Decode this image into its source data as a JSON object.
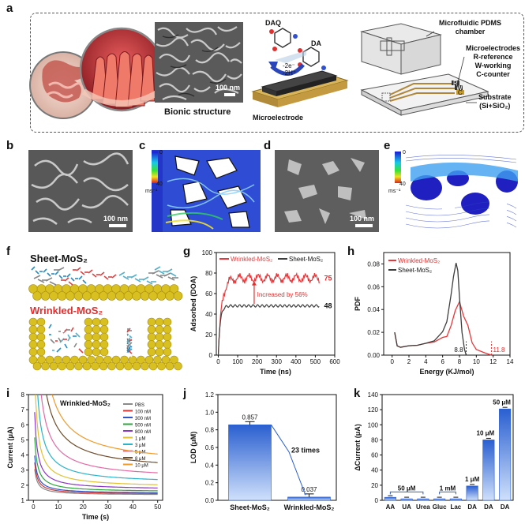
{
  "panel_letters": {
    "a": "a",
    "b": "b",
    "c": "c",
    "d": "d",
    "e": "e",
    "f": "f",
    "g": "g",
    "h": "h",
    "i": "i",
    "j": "j",
    "k": "k"
  },
  "panel_a": {
    "bionic_label": "Bionic structure",
    "scale_100nm": "100 nm",
    "daq": "DAQ",
    "da": "DA",
    "reaction": "-2e⁻\n-2H⁺",
    "reaction_e": "-2e⁻",
    "reaction_h": "-2H⁺",
    "microelectrode": "Microelectrode",
    "chamber_line1": "Microfluidic PDMS",
    "chamber_line2": "chamber",
    "electrodes_line1": "Microelectrodes",
    "electrodes_line2": "R-reference",
    "electrodes_line3": "W-working",
    "electrodes_line4": "C-counter",
    "substrate_line1": "Substrate",
    "substrate_line2": "(Si+SiO₂)",
    "pin_r": "R",
    "pin_w": "W",
    "pin_c": "C"
  },
  "panel_bcde": {
    "scale_b": "100 nm",
    "scale_d": "100 nm",
    "cbar_c_top": "0",
    "cbar_c_bot": "40",
    "cbar_c_unit": "ms⁻¹",
    "cbar_e_top": "0",
    "cbar_e_bot": "40",
    "cbar_e_unit": "ms⁻¹"
  },
  "panel_f": {
    "sheet": "Sheet-MoS₂",
    "wrinkled": "Wrinkled-MoS₂"
  },
  "chart_data": [
    {
      "panel": "g",
      "type": "line",
      "xlabel": "Time (ns)",
      "ylabel": "Adsorbed (DOA)",
      "xlim": [
        -10,
        600
      ],
      "ylim": [
        0,
        100
      ],
      "xticks": [
        0,
        100,
        200,
        300,
        400,
        500,
        600
      ],
      "yticks": [
        0,
        20,
        40,
        60,
        80,
        100
      ],
      "series": [
        {
          "name": "Wrinkled-MoS₂",
          "color": "#e8373a",
          "plateau": 75,
          "end": 520
        },
        {
          "name": "Sheet-MoS₂",
          "color": "#3d3d3d",
          "plateau": 48,
          "end": 520
        }
      ],
      "annotations": {
        "wrinkled_value": "75",
        "sheet_value": "48",
        "increase": "Increased by 56%"
      }
    },
    {
      "panel": "h",
      "type": "line",
      "xlabel": "Energy (KJ/mol)",
      "ylabel": "PDF",
      "xlim": [
        -1,
        14
      ],
      "ylim": [
        0,
        0.09
      ],
      "xticks": [
        0,
        2,
        4,
        6,
        8,
        10,
        12,
        14
      ],
      "yticks": [
        0.0,
        0.02,
        0.04,
        0.06,
        0.08
      ],
      "ytick_labels": [
        "0.00",
        "0.02",
        "0.04",
        "0.06",
        "0.08"
      ],
      "series": [
        {
          "name": "Wrinkled-MoS₂",
          "color": "#e8373a",
          "x": [
            0.3,
            0.6,
            1,
            2,
            3,
            4,
            5,
            6,
            6.5,
            7,
            7.5,
            8,
            8.5,
            9,
            9.5,
            10,
            11,
            11.8
          ],
          "y": [
            0.02,
            0.008,
            0.007,
            0.008,
            0.009,
            0.01,
            0.012,
            0.015,
            0.017,
            0.025,
            0.04,
            0.046,
            0.035,
            0.025,
            0.012,
            0.005,
            0.002,
            0.0
          ]
        },
        {
          "name": "Sheet-MoS₂",
          "color": "#3d3d3d",
          "x": [
            0.3,
            0.6,
            1,
            2,
            3,
            4,
            5,
            6,
            6.5,
            7,
            7.3,
            7.6,
            7.8,
            8,
            8.3,
            8.6,
            8.8
          ],
          "y": [
            0.02,
            0.008,
            0.007,
            0.008,
            0.009,
            0.01,
            0.013,
            0.02,
            0.03,
            0.052,
            0.07,
            0.08,
            0.075,
            0.05,
            0.02,
            0.005,
            0.0
          ]
        }
      ],
      "annotations": {
        "sheet_end": "8.8",
        "wrinkled_end": "11.8"
      }
    },
    {
      "panel": "i",
      "type": "line",
      "title": "Wrinkled-MoS₂",
      "xlabel": "Time (s)",
      "ylabel": "Current (μA)",
      "xlim": [
        -2,
        52
      ],
      "ylim": [
        1,
        8
      ],
      "xticks": [
        0,
        10,
        20,
        30,
        40,
        50
      ],
      "yticks": [
        1,
        2,
        3,
        4,
        5,
        6,
        7,
        8
      ],
      "series": [
        {
          "name": "PBS",
          "color": "#8a8a8a",
          "end": 1.35,
          "k": 1.2
        },
        {
          "name": "100 nM",
          "color": "#d33a3a",
          "end": 1.4,
          "k": 1.4
        },
        {
          "name": "300 nM",
          "color": "#2f55c8",
          "end": 1.45,
          "k": 1.6
        },
        {
          "name": "500 nM",
          "color": "#2aa83a",
          "end": 1.55,
          "k": 2.2
        },
        {
          "name": "800 nM",
          "color": "#8c36c6",
          "end": 1.7,
          "k": 3.0
        },
        {
          "name": "1 μM",
          "color": "#e0c232",
          "end": 1.85,
          "k": 4.5
        },
        {
          "name": "3 μM",
          "color": "#2bb3c9",
          "end": 2.1,
          "k": 6.5
        },
        {
          "name": "5 μM",
          "color": "#e36aa4",
          "end": 2.4,
          "k": 9.5
        },
        {
          "name": "8 μM",
          "color": "#6e4b2a",
          "end": 2.9,
          "k": 13
        },
        {
          "name": "10 μM",
          "color": "#f09a2a",
          "end": 3.3,
          "k": 16
        }
      ]
    },
    {
      "panel": "j",
      "type": "bar",
      "xlabel": "",
      "ylabel": "LOD (μM)",
      "categories": [
        "Sheet-MoS₂",
        "Wrinkled-MoS₂"
      ],
      "values": [
        0.857,
        0.037
      ],
      "value_labels": [
        "0.857",
        "0.037"
      ],
      "ylim": [
        0,
        1.2
      ],
      "yticks": [
        0.0,
        0.2,
        0.4,
        0.6,
        0.8,
        1.0,
        1.2
      ],
      "ytick_labels": [
        "0.0",
        "0.2",
        "0.4",
        "0.6",
        "0.8",
        "1.0",
        "1.2"
      ],
      "annotation": "23 times",
      "color": "#3a74d6"
    },
    {
      "panel": "k",
      "type": "bar",
      "ylabel": "ΔCurrent (μA)",
      "categories": [
        "AA",
        "UA",
        "Urea",
        "Gluc",
        "Lac",
        "DA",
        "DA",
        "DA"
      ],
      "values": [
        4,
        2,
        2,
        2,
        2,
        19,
        80,
        121
      ],
      "ylim": [
        0,
        140
      ],
      "yticks": [
        0,
        20,
        40,
        60,
        80,
        100,
        120,
        140
      ],
      "group_labels": [
        "50 μM",
        "1 mM",
        "1 μM",
        "10 μM",
        "50 μM"
      ],
      "color": "#3a74d6"
    }
  ]
}
